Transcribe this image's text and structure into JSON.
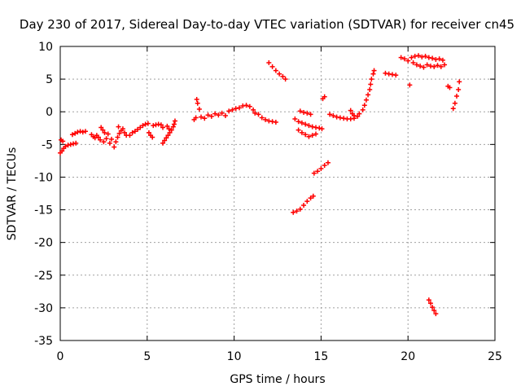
{
  "chart_data": {
    "type": "scatter",
    "title": "Day 230 of 2017, Sidereal Day-to-day VTEC variation (SDTVAR) for receiver cn45",
    "xlabel": "GPS time / hours",
    "ylabel": "SDTVAR / TECUs",
    "xlim": [
      0,
      25
    ],
    "ylim": [
      -35,
      10
    ],
    "xticks": [
      "0",
      "5",
      "10",
      "15",
      "20",
      "25"
    ],
    "yticks": [
      "-35",
      "-30",
      "-25",
      "-20",
      "-15",
      "-10",
      "-5",
      "0",
      "5",
      "10"
    ],
    "grid": true,
    "marker": "plus",
    "color": "#ff0000",
    "series": [
      {
        "points": [
          [
            0.0,
            -6.3
          ],
          [
            0.1,
            -6.0
          ],
          [
            0.2,
            -5.6
          ],
          [
            0.3,
            -5.3
          ],
          [
            0.45,
            -5.1
          ],
          [
            0.6,
            -5.0
          ],
          [
            0.75,
            -4.9
          ],
          [
            0.9,
            -4.8
          ],
          [
            0.05,
            -4.3
          ],
          [
            0.15,
            -4.5
          ],
          [
            0.7,
            -3.5
          ],
          [
            0.85,
            -3.3
          ],
          [
            1.0,
            -3.1
          ],
          [
            1.15,
            -3.0
          ],
          [
            1.3,
            -3.1
          ],
          [
            1.45,
            -3.0
          ],
          [
            1.8,
            -3.5
          ],
          [
            1.9,
            -3.8
          ],
          [
            2.0,
            -4.0
          ],
          [
            2.1,
            -3.6
          ],
          [
            2.2,
            -3.9
          ],
          [
            2.3,
            -4.3
          ],
          [
            2.35,
            -2.4
          ],
          [
            2.45,
            -2.8
          ],
          [
            2.55,
            -3.2
          ],
          [
            2.5,
            -4.6
          ],
          [
            2.65,
            -4.1
          ],
          [
            2.75,
            -3.4
          ],
          [
            2.85,
            -4.8
          ],
          [
            2.95,
            -4.2
          ],
          [
            3.1,
            -5.4
          ],
          [
            3.2,
            -4.6
          ],
          [
            3.3,
            -3.9
          ],
          [
            3.4,
            -3.3
          ],
          [
            3.5,
            -2.9
          ],
          [
            3.6,
            -2.6
          ],
          [
            3.7,
            -3.2
          ],
          [
            3.8,
            -3.6
          ],
          [
            3.35,
            -2.3
          ],
          [
            4.0,
            -3.6
          ],
          [
            4.15,
            -3.2
          ],
          [
            4.3,
            -3.0
          ],
          [
            4.45,
            -2.7
          ],
          [
            4.6,
            -2.4
          ],
          [
            4.75,
            -2.1
          ],
          [
            4.9,
            -1.9
          ],
          [
            5.05,
            -1.8
          ],
          [
            5.1,
            -3.2
          ],
          [
            5.2,
            -3.6
          ],
          [
            5.3,
            -3.9
          ],
          [
            5.35,
            -2.1
          ],
          [
            5.5,
            -2.0
          ],
          [
            5.65,
            -1.9
          ],
          [
            5.8,
            -2.0
          ],
          [
            5.9,
            -2.4
          ],
          [
            5.9,
            -4.8
          ],
          [
            6.0,
            -4.4
          ],
          [
            6.1,
            -4.0
          ],
          [
            6.2,
            -3.6
          ],
          [
            6.3,
            -3.2
          ],
          [
            6.4,
            -2.8
          ],
          [
            6.5,
            -2.3
          ],
          [
            6.55,
            -1.9
          ],
          [
            6.6,
            -1.4
          ],
          [
            6.15,
            -2.2
          ],
          [
            6.25,
            -2.6
          ],
          [
            7.7,
            -1.2
          ],
          [
            7.8,
            -0.9
          ],
          [
            7.85,
            1.9
          ],
          [
            7.9,
            1.3
          ],
          [
            8.0,
            0.4
          ],
          [
            8.1,
            -0.8
          ],
          [
            8.3,
            -1.0
          ],
          [
            8.5,
            -0.5
          ],
          [
            8.7,
            -0.7
          ],
          [
            8.9,
            -0.3
          ],
          [
            9.1,
            -0.5
          ],
          [
            9.3,
            -0.2
          ],
          [
            9.5,
            -0.6
          ],
          [
            9.7,
            0.1
          ],
          [
            9.9,
            0.3
          ],
          [
            10.1,
            0.5
          ],
          [
            10.3,
            0.6
          ],
          [
            10.5,
            0.9
          ],
          [
            10.7,
            1.0
          ],
          [
            10.9,
            0.8
          ],
          [
            11.1,
            0.3
          ],
          [
            11.2,
            -0.2
          ],
          [
            11.4,
            -0.4
          ],
          [
            11.6,
            -0.9
          ],
          [
            11.8,
            -1.2
          ],
          [
            12.0,
            -1.4
          ],
          [
            12.2,
            -1.5
          ],
          [
            12.4,
            -1.6
          ],
          [
            12.0,
            7.5
          ],
          [
            12.2,
            6.9
          ],
          [
            12.4,
            6.3
          ],
          [
            12.6,
            5.8
          ],
          [
            12.8,
            5.4
          ],
          [
            12.95,
            5.0
          ],
          [
            13.4,
            -15.4
          ],
          [
            13.6,
            -15.2
          ],
          [
            13.8,
            -14.9
          ],
          [
            14.0,
            -14.3
          ],
          [
            14.2,
            -13.7
          ],
          [
            14.4,
            -13.2
          ],
          [
            14.55,
            -12.9
          ],
          [
            13.5,
            -1.1
          ],
          [
            13.7,
            -1.5
          ],
          [
            13.9,
            -1.7
          ],
          [
            14.1,
            -1.9
          ],
          [
            14.3,
            -2.1
          ],
          [
            14.5,
            -2.3
          ],
          [
            14.7,
            -2.4
          ],
          [
            14.9,
            -2.5
          ],
          [
            15.05,
            -2.6
          ],
          [
            13.7,
            -2.8
          ],
          [
            13.9,
            -3.2
          ],
          [
            14.1,
            -3.5
          ],
          [
            14.3,
            -3.8
          ],
          [
            14.5,
            -3.6
          ],
          [
            14.7,
            -3.4
          ],
          [
            13.8,
            0.1
          ],
          [
            14.0,
            -0.1
          ],
          [
            14.2,
            -0.2
          ],
          [
            14.4,
            -0.4
          ],
          [
            14.6,
            -9.4
          ],
          [
            14.8,
            -9.1
          ],
          [
            15.0,
            -8.7
          ],
          [
            15.2,
            -8.2
          ],
          [
            15.4,
            -7.8
          ],
          [
            15.1,
            2.0
          ],
          [
            15.2,
            2.3
          ],
          [
            15.5,
            -0.4
          ],
          [
            15.7,
            -0.6
          ],
          [
            15.9,
            -0.8
          ],
          [
            16.1,
            -0.9
          ],
          [
            16.3,
            -1.0
          ],
          [
            16.5,
            -1.1
          ],
          [
            16.7,
            -1.1
          ],
          [
            16.9,
            -1.0
          ],
          [
            17.1,
            -0.7
          ],
          [
            16.7,
            0.2
          ],
          [
            16.8,
            -0.3
          ],
          [
            16.9,
            -0.6
          ],
          [
            17.2,
            -0.3
          ],
          [
            17.4,
            0.3
          ],
          [
            17.5,
            1.0
          ],
          [
            17.6,
            1.8
          ],
          [
            17.7,
            2.6
          ],
          [
            17.8,
            3.4
          ],
          [
            17.85,
            4.2
          ],
          [
            17.9,
            5.0
          ],
          [
            18.0,
            5.8
          ],
          [
            18.05,
            6.3
          ],
          [
            18.7,
            5.9
          ],
          [
            18.9,
            5.8
          ],
          [
            19.1,
            5.7
          ],
          [
            19.3,
            5.6
          ],
          [
            19.6,
            8.3
          ],
          [
            19.8,
            8.1
          ],
          [
            20.0,
            7.8
          ],
          [
            20.1,
            4.1
          ],
          [
            20.3,
            7.5
          ],
          [
            20.5,
            7.2
          ],
          [
            20.7,
            7.0
          ],
          [
            20.9,
            6.8
          ],
          [
            21.1,
            7.2
          ],
          [
            21.3,
            7.0
          ],
          [
            21.5,
            6.9
          ],
          [
            21.7,
            7.1
          ],
          [
            21.9,
            6.9
          ],
          [
            20.2,
            8.3
          ],
          [
            20.4,
            8.5
          ],
          [
            20.6,
            8.6
          ],
          [
            20.8,
            8.4
          ],
          [
            21.0,
            8.5
          ],
          [
            21.2,
            8.3
          ],
          [
            21.4,
            8.2
          ],
          [
            21.6,
            8.0
          ],
          [
            21.8,
            8.1
          ],
          [
            22.0,
            7.9
          ],
          [
            22.1,
            7.2
          ],
          [
            22.3,
            3.9
          ],
          [
            22.4,
            3.7
          ],
          [
            22.6,
            0.5
          ],
          [
            22.7,
            1.3
          ],
          [
            22.8,
            2.4
          ],
          [
            22.9,
            3.4
          ],
          [
            22.95,
            4.6
          ],
          [
            21.2,
            -28.8
          ],
          [
            21.3,
            -29.3
          ],
          [
            21.4,
            -29.9
          ],
          [
            21.5,
            -30.4
          ],
          [
            21.6,
            -30.9
          ]
        ]
      }
    ]
  }
}
